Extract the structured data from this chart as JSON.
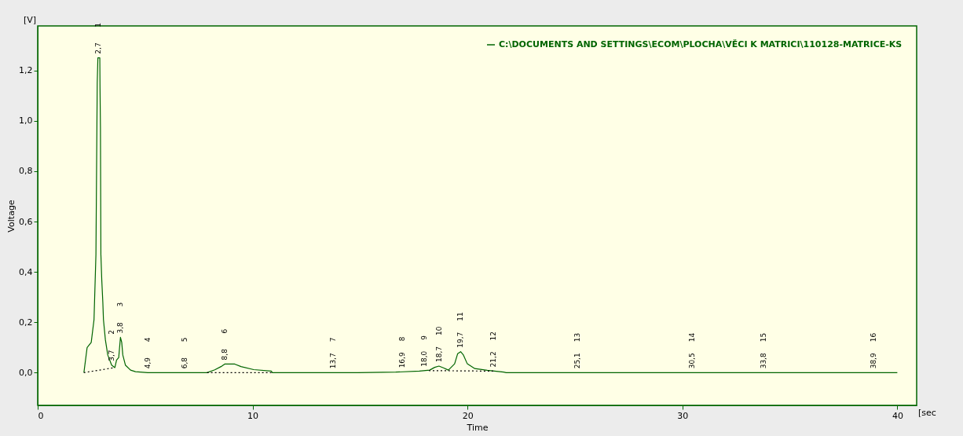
{
  "chart_data": {
    "type": "line",
    "xlabel": "Time",
    "ylabel": "Voltage",
    "xlim": [
      0,
      40.9
    ],
    "ylim": [
      -0.13,
      1.377
    ],
    "xticks": [
      0,
      10,
      20,
      30,
      40
    ],
    "yticks": [
      {
        "value": 0,
        "label": "0,0"
      },
      {
        "value": 0.2,
        "label": "0,2"
      },
      {
        "value": 0.4,
        "label": "0,4"
      },
      {
        "value": 0.6,
        "label": "0,6"
      },
      {
        "value": 0.8,
        "label": "0,8"
      },
      {
        "value": 1.0,
        "label": "1,0"
      },
      {
        "value": 1.2,
        "label": "1,2"
      }
    ],
    "grid": false,
    "legend": "top right",
    "line_style": "solid",
    "marker": "none",
    "series": [
      {
        "name": "C:\\DOCUMENTS AND SETTINGS\\ECOM\\PLOCHA\\VĚCI K MATRICI\\110128-MATRICE-KS",
        "color": "#006400",
        "x": [
          2.15,
          2.3,
          2.49,
          2.62,
          2.71,
          2.77,
          2.8,
          2.89,
          2.9,
          2.92,
          2.94,
          2.98,
          3.03,
          3.06,
          3.15,
          3.26,
          3.44,
          3.59,
          3.67,
          3.77,
          3.85,
          3.91,
          3.96,
          4.08,
          4.32,
          4.55,
          5.12,
          7.88,
          8.24,
          8.53,
          8.7,
          9.17,
          9.46,
          10.05,
          10.87,
          10.92,
          14.9,
          16.66,
          17.76,
          18.24,
          18.47,
          18.67,
          18.88,
          19.11,
          19.4,
          19.54,
          19.68,
          19.81,
          19.99,
          20.34,
          20.92,
          21.68,
          21.8,
          40.0
        ],
        "values": [
          0,
          0.1,
          0.12,
          0.21,
          0.47,
          1.15,
          1.25,
          1.25,
          1.13,
          0.97,
          0.47,
          0.37,
          0.28,
          0.21,
          0.13,
          0.07,
          0.03,
          0.02,
          0.05,
          0.06,
          0.14,
          0.12,
          0.07,
          0.03,
          0.01,
          0.004,
          0,
          0,
          0.011,
          0.024,
          0.034,
          0.034,
          0.024,
          0.012,
          0.006,
          0,
          0,
          0.002,
          0.006,
          0.01,
          0.021,
          0.026,
          0.019,
          0.01,
          0.035,
          0.075,
          0.083,
          0.07,
          0.035,
          0.016,
          0.009,
          0.002,
          0,
          0
        ]
      },
      {
        "color": "#000000",
        "line_style": "dotted",
        "x": [
          2.15,
          3.59,
          5.0,
          7.88,
          10.92,
          15.0,
          18.2,
          21.2
        ],
        "values": [
          0,
          0.02,
          null,
          0,
          0,
          null,
          0.008,
          0.006
        ]
      }
    ],
    "annotations": [
      {
        "text": "2,7",
        "x": 2.8,
        "y": 1.25
      },
      "1",
      {
        "text": "3,7",
        "x": 3.44,
        "y": 0.03
      },
      "2",
      {
        "text": "3,8",
        "x": 3.85,
        "y": 0.14
      },
      "3",
      {
        "text": "4,9",
        "x": 5.12,
        "y": 0
      },
      "4",
      {
        "text": "6,8",
        "x": 6.84,
        "y": 0
      },
      "5",
      {
        "text": "8,8",
        "x": 8.7,
        "y": 0.034
      },
      "6",
      {
        "text": "13,7",
        "x": 13.75,
        "y": 0
      },
      "7",
      {
        "text": "16,9",
        "x": 16.95,
        "y": 0.003
      },
      "8",
      {
        "text": "18,0",
        "x": 18.0,
        "y": 0.008
      },
      "9",
      {
        "text": "18,7",
        "x": 18.67,
        "y": 0.026
      },
      "10",
      {
        "text": "19,7",
        "x": 19.68,
        "y": 0.083
      },
      "11",
      {
        "text": "21,2",
        "x": 21.2,
        "y": 0.006
      },
      "12",
      {
        "text": "25,1",
        "x": 25.12,
        "y": 0
      },
      "13",
      {
        "text": "30,5",
        "x": 30.46,
        "y": 0
      },
      "14",
      {
        "text": "33,8",
        "x": 33.79,
        "y": 0
      },
      "15",
      {
        "text": "38,9",
        "x": 38.88,
        "y": 0
      },
      "16",
      "[V]",
      "[sec"
    ]
  }
}
